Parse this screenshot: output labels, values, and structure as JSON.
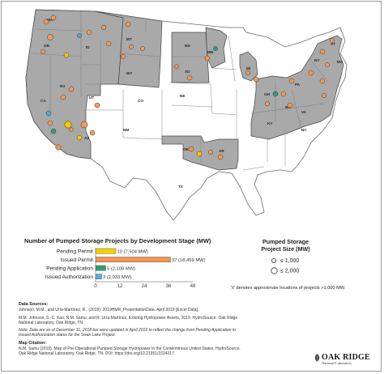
{
  "map": {
    "state_labels": [
      "WA",
      "OR",
      "CA",
      "NV",
      "ID",
      "MT",
      "WY",
      "UT",
      "AZ",
      "CO",
      "NM",
      "ND",
      "SD",
      "NE",
      "MN",
      "OK",
      "AR",
      "MI",
      "OH",
      "WV",
      "VA",
      "KY",
      "NC",
      "PA",
      "NY",
      "VT",
      "MA",
      "TX"
    ],
    "project_size_colors": {
      "issued": "#f39a55",
      "pending": "#f5c800",
      "application": "#2ea07c",
      "authorization": "#54a6dc"
    }
  },
  "chart": {
    "title": "Number of Pumped Storage Projects by Development Stage (MW)"
  },
  "chart_data": {
    "type": "bar",
    "orientation": "horizontal",
    "categories": [
      "Pending Permit",
      "Issued Permit",
      "Pending Application",
      "Issued Authorization"
    ],
    "values": [
      10,
      37,
      5,
      3
    ],
    "value_labels": [
      "10 (7,504 MW)",
      "37 (18,459 MW)",
      "5 (2,108 MW)",
      "3 (2,033 MW)"
    ],
    "colors": [
      "#f5d000",
      "#f29455",
      "#2f9e78",
      "#5aaee0"
    ],
    "xlim": [
      0,
      48
    ],
    "xticks": [
      0,
      12,
      24,
      36,
      48
    ]
  },
  "legend": {
    "title_line1": "Pumped Storage",
    "title_line2": "Project Size (MW)",
    "small_label": "≤ 1,000",
    "large_label": "≤ 2,000",
    "note": "'±' denotes approximate locations of projects >1,000 MW."
  },
  "sources": {
    "heading": "Data Sources:",
    "line1": "Johnson, M.M., and Uría-Martínez, R., (2019). 2019HMR_PresentationData. April 2019 [Excel Data].",
    "line2a": "M.M. Johnson, S.-C. Kao, N.M. Samu, and R. Uría-Martínez, Existing Hydropower Assets, 2019. HydroSource. Oak Ridge",
    "line2b": "National Laboratory, Oak Ridge, TN.",
    "line3a": "Note: Data are as of December 31, 2018 but were updated in April 2019 to reflect the change from Pending Application to",
    "line3b": "Issued Authorization status for the Swan Lake Project."
  },
  "citation": {
    "heading": "Map Citation:",
    "line1": "N.M. Samu (2019). Map of Pre-Operational Pumped Storage Hydropower in the Conterminous United States. HydroSource.",
    "line2": "Oak Ridge National Laboratory, Oak Ridge, TN. DOI: https://doi.org/10.21951/1524217"
  },
  "logo": {
    "main": "OAK RIDGE",
    "sub": "National Laboratory"
  }
}
